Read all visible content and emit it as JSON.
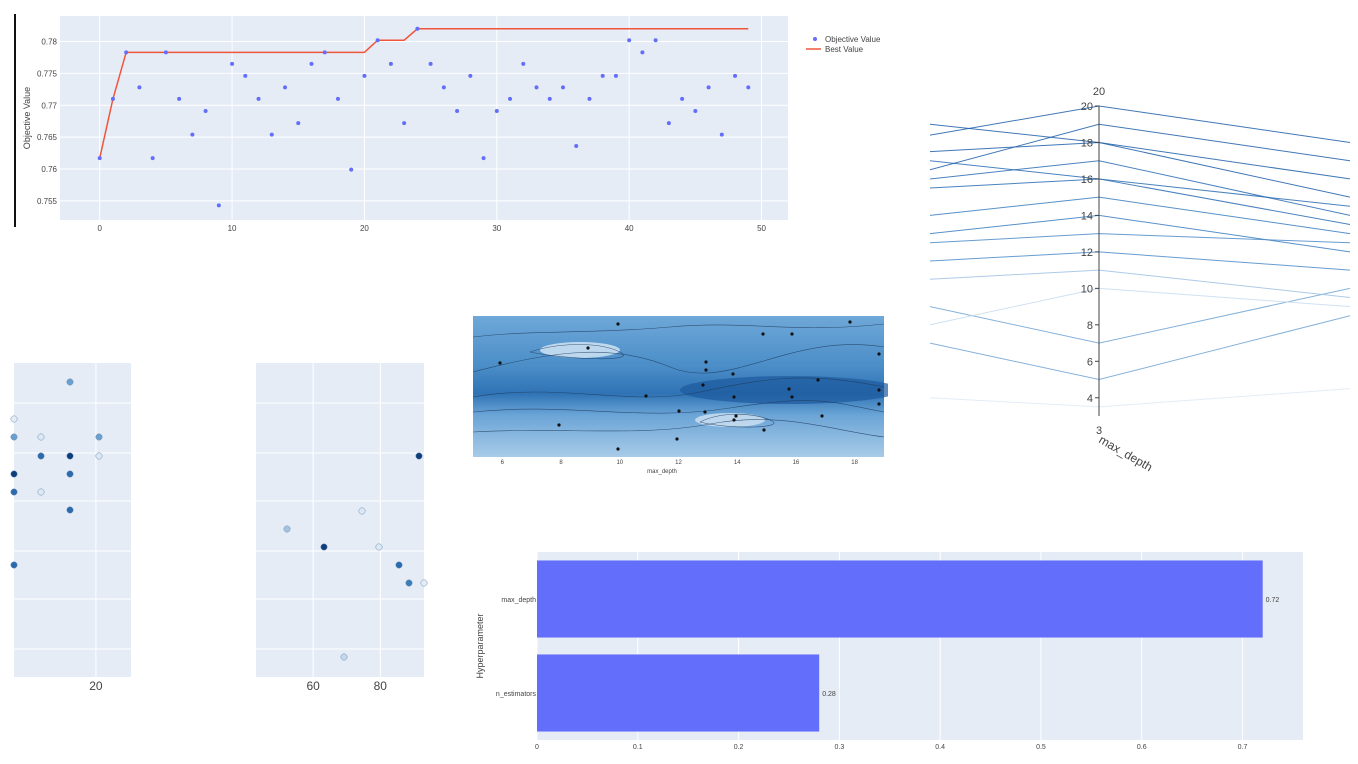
{
  "charts": {
    "history": {
      "ylabel": "Objective Value",
      "legend": {
        "objective": "Objective Value",
        "best": "Best Value"
      }
    },
    "parallel": {
      "axis_label": "max_depth",
      "top_label": "20",
      "bottom_label": "3"
    },
    "contour": {
      "xlabel": "max_depth"
    },
    "importance": {
      "ylabel": "Hyperparameter"
    }
  },
  "chart_data": [
    {
      "type": "scatter",
      "title": "",
      "xlabel": "",
      "ylabel": "Objective Value",
      "xlim": [
        -3,
        52
      ],
      "ylim": [
        0.752,
        0.784
      ],
      "xticks": [
        0,
        10,
        20,
        30,
        40,
        50
      ],
      "yticks": [
        0.755,
        0.76,
        0.765,
        0.77,
        0.775,
        0.78
      ],
      "grid": true,
      "legend": "top-right",
      "series": [
        {
          "name": "Objective Value",
          "color": "#636efa",
          "x": [
            0,
            1,
            2,
            3,
            4,
            5,
            6,
            7,
            8,
            9,
            10,
            11,
            12,
            13,
            14,
            15,
            16,
            17,
            18,
            19,
            20,
            21,
            22,
            23,
            24,
            25,
            26,
            27,
            28,
            29,
            30,
            31,
            32,
            33,
            34,
            35,
            36,
            37,
            38,
            39,
            40,
            41,
            42,
            43,
            44,
            45,
            46,
            47,
            48,
            49
          ],
          "y": [
            0.7617,
            0.771,
            0.7783,
            0.7728,
            0.7617,
            0.7783,
            0.771,
            0.7654,
            0.7691,
            0.7543,
            0.7765,
            0.7746,
            0.771,
            0.7654,
            0.7728,
            0.7672,
            0.7765,
            0.7783,
            0.771,
            0.7599,
            0.7746,
            0.7802,
            0.7765,
            0.7672,
            0.782,
            0.7765,
            0.7728,
            0.7691,
            0.7746,
            0.7617,
            0.7691,
            0.771,
            0.7765,
            0.7728,
            0.771,
            0.7728,
            0.7636,
            0.771,
            0.7746,
            0.7746,
            0.7802,
            0.7783,
            0.7802,
            0.7672,
            0.771,
            0.7691,
            0.7728,
            0.7654,
            0.7746,
            0.7728
          ]
        },
        {
          "name": "Best Value",
          "color": "#ef553b",
          "x": [
            0,
            1,
            2,
            20,
            21,
            23,
            24,
            49
          ],
          "y": [
            0.7617,
            0.771,
            0.7783,
            0.7783,
            0.7802,
            0.7802,
            0.782,
            0.782
          ]
        }
      ]
    },
    {
      "type": "line",
      "xlabel": "max_depth",
      "ylim": [
        3,
        20
      ],
      "yticks": [
        4,
        6,
        8,
        10,
        12,
        14,
        16,
        18,
        20
      ],
      "note_axes": [
        "left axis (cut off)",
        "max_depth",
        "right axis (cut off)"
      ],
      "series": [
        {
          "color": "#1f5fa8",
          "values": [
            18.4,
            20.0,
            18.0
          ]
        },
        {
          "color": "#1f5fa8",
          "values": [
            16.5,
            19.0,
            17.0
          ]
        },
        {
          "color": "#1f5fa8",
          "values": [
            19.0,
            18.0,
            16.0
          ]
        },
        {
          "color": "#1f5fa8",
          "values": [
            17.5,
            18.0,
            15.0
          ]
        },
        {
          "color": "#2a6cb3",
          "values": [
            16.0,
            17.0,
            14.0
          ]
        },
        {
          "color": "#2a6cb3",
          "values": [
            17.0,
            16.0,
            13.5
          ]
        },
        {
          "color": "#2a6cb3",
          "values": [
            15.5,
            16.0,
            14.5
          ]
        },
        {
          "color": "#3a7cc0",
          "values": [
            14.0,
            15.0,
            13.0
          ]
        },
        {
          "color": "#3a7cc0",
          "values": [
            13.0,
            14.0,
            12.0
          ]
        },
        {
          "color": "#4b8bc8",
          "values": [
            12.5,
            13.0,
            12.5
          ]
        },
        {
          "color": "#4b8bc8",
          "values": [
            11.5,
            12.0,
            11.0
          ]
        },
        {
          "color": "#6fa3d3",
          "values": [
            9.0,
            7.0,
            10.0
          ]
        },
        {
          "color": "#6fa3d3",
          "values": [
            7.0,
            5.0,
            8.5
          ]
        },
        {
          "color": "#9dc1e4",
          "values": [
            10.5,
            11.0,
            9.5
          ]
        },
        {
          "color": "#c7dcf0",
          "values": [
            8.0,
            10.0,
            9.0
          ]
        },
        {
          "color": "#dde9f6",
          "values": [
            4.0,
            3.5,
            4.5
          ]
        }
      ]
    },
    {
      "type": "heatmap",
      "xlabel": "max_depth",
      "xticks": [
        6,
        8,
        10,
        12,
        14,
        16,
        18
      ],
      "xlim": [
        5,
        19
      ]
    },
    {
      "type": "scatter",
      "xticks": [
        20
      ],
      "xlim": [
        13,
        23
      ]
    },
    {
      "type": "scatter",
      "xticks": [
        60,
        80
      ],
      "xlim": [
        43,
        93
      ]
    },
    {
      "type": "bar",
      "orientation": "horizontal",
      "categories": [
        "max_depth",
        "n_estimators"
      ],
      "values": [
        0.72,
        0.28
      ],
      "value_labels": [
        "0.72",
        "0.28"
      ],
      "ylabel": "Hyperparameter",
      "xlim": [
        0,
        0.76
      ],
      "xticks": [
        0,
        0.1,
        0.2,
        0.3,
        0.4,
        0.5,
        0.6,
        0.7
      ],
      "color": "#636efa",
      "grid": true
    }
  ]
}
